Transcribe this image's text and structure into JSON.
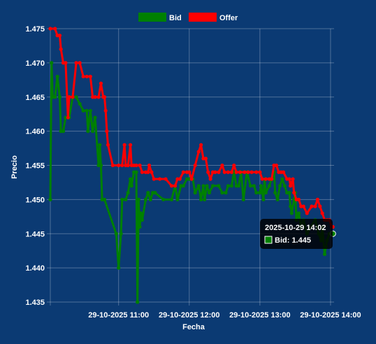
{
  "chart_data": {
    "type": "line",
    "xlabel": "Fecha",
    "ylabel": "Precio",
    "ylim": [
      1.435,
      1.475
    ],
    "yticks": [
      "1.475",
      "1.470",
      "1.465",
      "1.460",
      "1.455",
      "1.450",
      "1.445",
      "1.440",
      "1.435"
    ],
    "xticks": [
      "29-10-2025 11:00",
      "29-10-2025 12:00",
      "29-10-2025 13:00",
      "29-10-2025 14:00"
    ],
    "legend_position": "top-center",
    "grid": true,
    "series": [
      {
        "name": "Bid",
        "color": "#008000",
        "points": [
          [
            "10:02",
            1.45
          ],
          [
            "10:03",
            1.47
          ],
          [
            "10:04",
            1.465
          ],
          [
            "10:06",
            1.465
          ],
          [
            "10:08",
            1.468
          ],
          [
            "10:10",
            1.465
          ],
          [
            "10:11",
            1.46
          ],
          [
            "10:13",
            1.46
          ],
          [
            "10:15",
            1.462
          ],
          [
            "10:18",
            1.462
          ],
          [
            "10:21",
            1.465
          ],
          [
            "10:24",
            1.465
          ],
          [
            "10:27",
            1.464
          ],
          [
            "10:30",
            1.463
          ],
          [
            "10:33",
            1.463
          ],
          [
            "10:34",
            1.46
          ],
          [
            "10:36",
            1.463
          ],
          [
            "10:38",
            1.46
          ],
          [
            "10:40",
            1.462
          ],
          [
            "10:43",
            1.455
          ],
          [
            "10:44",
            1.458
          ],
          [
            "10:45",
            1.455
          ],
          [
            "10:46",
            1.45
          ],
          [
            "10:48",
            1.45
          ],
          [
            "10:58",
            1.445
          ],
          [
            "11:00",
            1.44
          ],
          [
            "11:02",
            1.445
          ],
          [
            "11:03",
            1.45
          ],
          [
            "11:06",
            1.45
          ],
          [
            "11:08",
            1.451
          ],
          [
            "11:10",
            1.453
          ],
          [
            "11:11",
            1.452
          ],
          [
            "11:13",
            1.454
          ],
          [
            "11:15",
            1.454
          ],
          [
            "11:16",
            1.435
          ],
          [
            "11:17",
            1.45
          ],
          [
            "11:18",
            1.446
          ],
          [
            "11:19",
            1.448
          ],
          [
            "11:20",
            1.447
          ],
          [
            "11:23",
            1.45
          ],
          [
            "11:25",
            1.451
          ],
          [
            "11:27",
            1.45
          ],
          [
            "11:29",
            1.451
          ],
          [
            "11:31",
            1.451
          ],
          [
            "11:38",
            1.45
          ],
          [
            "11:45",
            1.45
          ],
          [
            "11:48",
            1.452
          ],
          [
            "11:50",
            1.45
          ],
          [
            "11:53",
            1.452
          ],
          [
            "11:55",
            1.452
          ],
          [
            "11:58",
            1.453
          ],
          [
            "12:00",
            1.453
          ],
          [
            "12:03",
            1.453
          ],
          [
            "12:05",
            1.451
          ],
          [
            "12:08",
            1.452
          ],
          [
            "12:10",
            1.45
          ],
          [
            "12:12",
            1.452
          ],
          [
            "12:13",
            1.45
          ],
          [
            "12:15",
            1.452
          ],
          [
            "12:17",
            1.451
          ],
          [
            "12:20",
            1.452
          ],
          [
            "12:25",
            1.452
          ],
          [
            "12:28",
            1.451
          ],
          [
            "12:31",
            1.451
          ],
          [
            "12:33",
            1.452
          ],
          [
            "12:36",
            1.452
          ],
          [
            "12:38",
            1.454
          ],
          [
            "12:40",
            1.452
          ],
          [
            "12:42",
            1.452
          ],
          [
            "12:44",
            1.454
          ],
          [
            "12:46",
            1.45
          ],
          [
            "12:49",
            1.454
          ],
          [
            "12:52",
            1.452
          ],
          [
            "12:55",
            1.452
          ],
          [
            "12:57",
            1.451
          ],
          [
            "13:00",
            1.451
          ],
          [
            "13:01",
            1.452
          ],
          [
            "13:03",
            1.45
          ],
          [
            "13:04",
            1.453
          ],
          [
            "13:05",
            1.451
          ],
          [
            "13:08",
            1.452
          ],
          [
            "13:10",
            1.453
          ],
          [
            "13:12",
            1.454
          ],
          [
            "13:13",
            1.451
          ],
          [
            "13:15",
            1.45
          ],
          [
            "13:17",
            1.452
          ],
          [
            "13:19",
            1.453
          ],
          [
            "13:21",
            1.452
          ],
          [
            "13:23",
            1.451
          ],
          [
            "13:25",
            1.451
          ],
          [
            "13:26",
            1.449
          ],
          [
            "13:27",
            1.448
          ],
          [
            "13:29",
            1.45
          ],
          [
            "13:30",
            1.451
          ],
          [
            "13:31",
            1.447
          ],
          [
            "13:33",
            1.448
          ],
          [
            "13:35",
            1.446
          ],
          [
            "13:37",
            1.447
          ],
          [
            "13:40",
            1.445
          ],
          [
            "13:43",
            1.446
          ],
          [
            "13:47",
            1.447
          ],
          [
            "13:50",
            1.445
          ],
          [
            "13:52",
            1.444
          ],
          [
            "13:53",
            1.446
          ],
          [
            "13:55",
            1.442
          ],
          [
            "13:56",
            1.443
          ],
          [
            "13:57",
            1.444
          ],
          [
            "13:59",
            1.445
          ],
          [
            "14:01",
            1.445
          ],
          [
            "14:02",
            1.445
          ]
        ]
      },
      {
        "name": "Offer",
        "color": "#ff0000",
        "points": [
          [
            "10:02",
            1.475
          ],
          [
            "10:06",
            1.475
          ],
          [
            "10:08",
            1.474
          ],
          [
            "10:10",
            1.474
          ],
          [
            "10:11",
            1.472
          ],
          [
            "10:13",
            1.47
          ],
          [
            "10:15",
            1.47
          ],
          [
            "10:17",
            1.462
          ],
          [
            "10:18",
            1.465
          ],
          [
            "10:21",
            1.465
          ],
          [
            "10:24",
            1.47
          ],
          [
            "10:27",
            1.47
          ],
          [
            "10:30",
            1.468
          ],
          [
            "10:33",
            1.468
          ],
          [
            "10:36",
            1.468
          ],
          [
            "10:38",
            1.465
          ],
          [
            "10:40",
            1.465
          ],
          [
            "10:43",
            1.465
          ],
          [
            "10:45",
            1.467
          ],
          [
            "10:47",
            1.465
          ],
          [
            "10:48",
            1.465
          ],
          [
            "10:49",
            1.463
          ],
          [
            "10:50",
            1.46
          ],
          [
            "10:51",
            1.458
          ],
          [
            "10:55",
            1.455
          ],
          [
            "11:00",
            1.455
          ],
          [
            "11:03",
            1.455
          ],
          [
            "11:05",
            1.458
          ],
          [
            "11:06",
            1.455
          ],
          [
            "11:08",
            1.455
          ],
          [
            "11:10",
            1.458
          ],
          [
            "11:11",
            1.455
          ],
          [
            "11:13",
            1.455
          ],
          [
            "11:15",
            1.455
          ],
          [
            "11:18",
            1.455
          ],
          [
            "11:20",
            1.454
          ],
          [
            "11:23",
            1.454
          ],
          [
            "11:25",
            1.454
          ],
          [
            "11:26",
            1.455
          ],
          [
            "11:28",
            1.454
          ],
          [
            "11:30",
            1.453
          ],
          [
            "11:35",
            1.453
          ],
          [
            "11:40",
            1.453
          ],
          [
            "11:45",
            1.452
          ],
          [
            "11:48",
            1.452
          ],
          [
            "11:50",
            1.453
          ],
          [
            "11:52",
            1.453
          ],
          [
            "11:55",
            1.454
          ],
          [
            "11:58",
            1.454
          ],
          [
            "12:00",
            1.454
          ],
          [
            "12:02",
            1.453
          ],
          [
            "12:05",
            1.455
          ],
          [
            "12:08",
            1.457
          ],
          [
            "12:10",
            1.458
          ],
          [
            "12:12",
            1.456
          ],
          [
            "12:14",
            1.456
          ],
          [
            "12:16",
            1.454
          ],
          [
            "12:18",
            1.453
          ],
          [
            "12:20",
            1.454
          ],
          [
            "12:22",
            1.454
          ],
          [
            "12:25",
            1.454
          ],
          [
            "12:28",
            1.455
          ],
          [
            "12:30",
            1.454
          ],
          [
            "12:33",
            1.454
          ],
          [
            "12:36",
            1.454
          ],
          [
            "12:38",
            1.455
          ],
          [
            "12:40",
            1.454
          ],
          [
            "12:43",
            1.454
          ],
          [
            "12:47",
            1.454
          ],
          [
            "12:50",
            1.454
          ],
          [
            "12:53",
            1.454
          ],
          [
            "12:57",
            1.454
          ],
          [
            "13:00",
            1.454
          ],
          [
            "13:02",
            1.453
          ],
          [
            "13:05",
            1.453
          ],
          [
            "13:08",
            1.453
          ],
          [
            "13:10",
            1.453
          ],
          [
            "13:12",
            1.455
          ],
          [
            "13:14",
            1.455
          ],
          [
            "13:16",
            1.454
          ],
          [
            "13:18",
            1.454
          ],
          [
            "13:20",
            1.454
          ],
          [
            "13:23",
            1.453
          ],
          [
            "13:25",
            1.453
          ],
          [
            "13:26",
            1.452
          ],
          [
            "13:28",
            1.453
          ],
          [
            "13:29",
            1.451
          ],
          [
            "13:31",
            1.45
          ],
          [
            "13:33",
            1.45
          ],
          [
            "13:35",
            1.449
          ],
          [
            "13:37",
            1.449
          ],
          [
            "13:40",
            1.448
          ],
          [
            "13:44",
            1.449
          ],
          [
            "13:47",
            1.449
          ],
          [
            "13:49",
            1.45
          ],
          [
            "13:51",
            1.449
          ],
          [
            "13:53",
            1.448
          ],
          [
            "13:55",
            1.447
          ],
          [
            "13:57",
            1.447
          ],
          [
            "13:59",
            1.447
          ],
          [
            "14:01",
            1.446
          ],
          [
            "14:02",
            1.446
          ]
        ]
      }
    ],
    "tooltip": {
      "title": "2025-10-29 14:02",
      "label": "Bid: 1.445",
      "series": "Bid",
      "time": "14:02",
      "value": 1.445
    }
  }
}
